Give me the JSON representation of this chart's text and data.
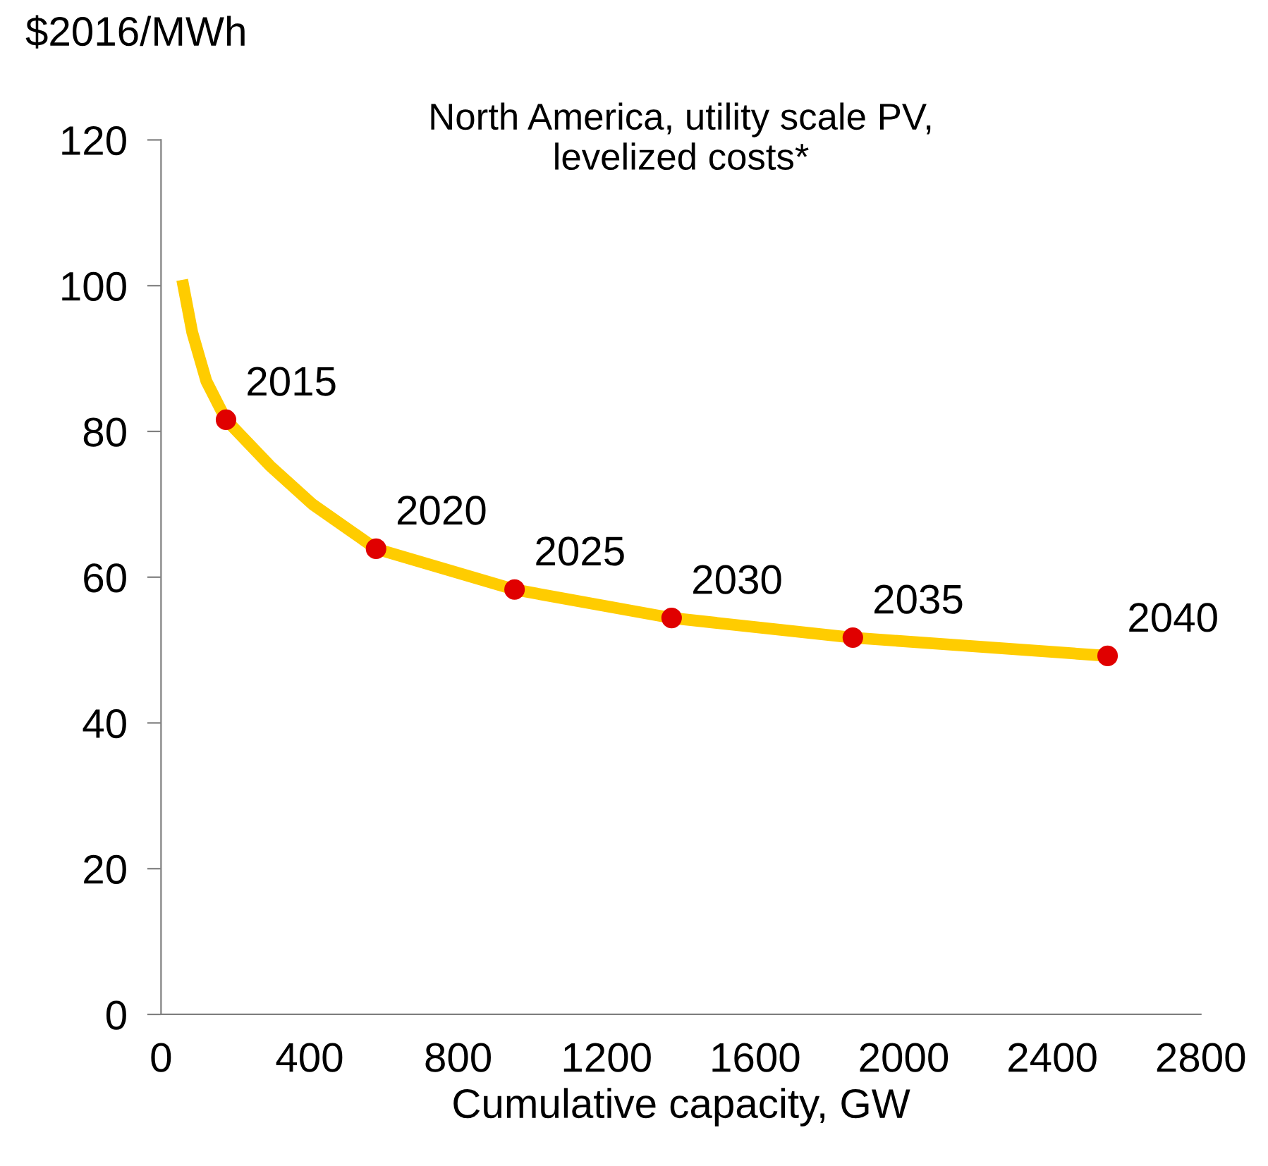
{
  "chart_data": {
    "type": "line",
    "title": "North America, utility scale PV,\nlevelized costs*",
    "xlabel": "Cumulative capacity, GW",
    "ylabel": "$2016/MWh",
    "xlim": [
      0,
      2800
    ],
    "xticks": [
      0,
      400,
      800,
      1200,
      1600,
      2000,
      2400,
      2800
    ],
    "ylim": [
      0,
      120
    ],
    "yticks": [
      0,
      20,
      40,
      60,
      80,
      100,
      120
    ],
    "grid": false,
    "series": [
      {
        "color": "#ffcc00",
        "x": [
          57,
          84,
          122,
          175,
          293,
          408,
          579,
          952,
          1375,
          1863,
          2549
        ],
        "values": [
          100.8,
          93.6,
          86.9,
          81.6,
          75.3,
          70,
          63.9,
          58.3,
          54.4,
          51.7,
          49.2
        ]
      },
      {
        "type": "scatter",
        "color": "#e00000",
        "marker": "circle",
        "x": [
          175,
          579,
          952,
          1375,
          1863,
          2549
        ],
        "values": [
          81.6,
          63.9,
          58.3,
          54.4,
          51.7,
          49.2
        ]
      }
    ],
    "annotations": [
      {
        "text": "2015",
        "x": 175,
        "y": 81.6
      },
      {
        "text": "2020",
        "x": 579,
        "y": 63.9
      },
      {
        "text": "2025",
        "x": 952,
        "y": 58.3
      },
      {
        "text": "2030",
        "x": 1375,
        "y": 54.4
      },
      {
        "text": "2035",
        "x": 1863,
        "y": 51.7
      },
      {
        "text": "2040",
        "x": 2549,
        "y": 49.2
      }
    ]
  }
}
